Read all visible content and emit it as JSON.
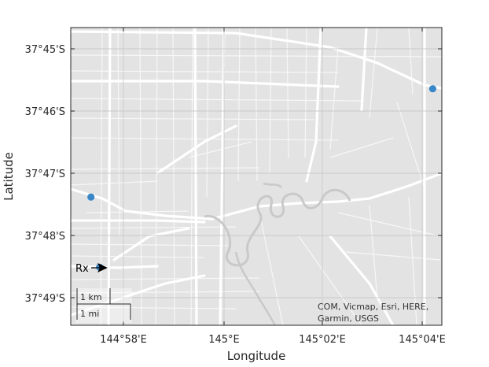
{
  "map": {
    "xlabel": "Longitude",
    "ylabel": "Latitude",
    "x_ticks": [
      "144°58'E",
      "145°E",
      "145°02'E",
      "145°04'E"
    ],
    "y_ticks": [
      "37°45'S",
      "37°46'S",
      "37°47'S",
      "37°48'S",
      "37°49'S"
    ],
    "attribution": [
      "COM, Vicmap, Esri, HERE,",
      "Garmin, USGS"
    ],
    "scale_bar": {
      "km_label": "1 km",
      "mi_label": "1 mi"
    },
    "marker_label": "Rx",
    "colors": {
      "basemap": "#e3e3e3",
      "roads": "#ffffff",
      "river": "#c9c9c9",
      "grid": "#c8c8c8",
      "marker": "#3a87c8"
    }
  },
  "markers": [
    {
      "id": "site-1",
      "lon": 145.0702,
      "lat": -37.7607
    },
    {
      "id": "site-2",
      "lon": 144.9558,
      "lat": -37.7897
    },
    {
      "id": "site-3-rx",
      "lon": 144.9587,
      "lat": -37.8085,
      "label": "Rx"
    }
  ]
}
